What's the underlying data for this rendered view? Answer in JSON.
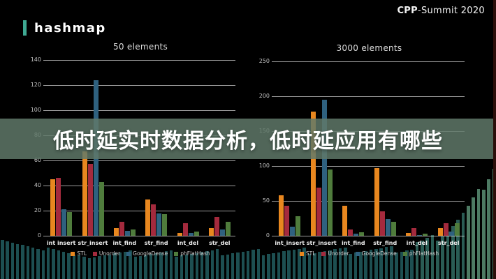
{
  "header": {
    "brand": "hashmap",
    "event": {
      "bold": "CPP",
      "rest": "-Summit 2020"
    }
  },
  "overlay": {
    "text": "低时延实时数据分析，低时延应用有哪些"
  },
  "chart_data": [
    {
      "type": "bar",
      "title": "50 elements",
      "categories": [
        "int insert",
        "str_insert",
        "int_find",
        "str_find",
        "int_del",
        "str_del"
      ],
      "series": [
        {
          "name": "STL",
          "color": "#e8871f",
          "values": [
            45,
            67,
            6,
            29,
            2,
            6
          ]
        },
        {
          "name": "Unorder",
          "color": "#a42a3d",
          "values": [
            46,
            57,
            11,
            25,
            10,
            15
          ]
        },
        {
          "name": "GoogleDense",
          "color": "#2f617f",
          "values": [
            21,
            124,
            4,
            18,
            2,
            5
          ]
        },
        {
          "name": "phFlatHash",
          "color": "#4f7c3c",
          "values": [
            19,
            43,
            5,
            17,
            3.5,
            11
          ]
        }
      ],
      "ylim": [
        0,
        140
      ],
      "ytick_step": 20,
      "grid": true,
      "legend_position": "bottom"
    },
    {
      "type": "bar",
      "title": "3000 elements",
      "categories": [
        "int_insert",
        "str_insert",
        "int_find",
        "str_find",
        "int_del",
        "str_del"
      ],
      "series": [
        {
          "name": "STL",
          "color": "#e8871f",
          "values": [
            58,
            178,
            43,
            97,
            4,
            11
          ]
        },
        {
          "name": "Unorder",
          "color": "#a42a3d",
          "values": [
            43,
            69,
            9,
            35,
            11,
            18
          ]
        },
        {
          "name": "GoogleDense",
          "color": "#2f617f",
          "values": [
            13,
            195,
            3,
            24,
            1.5,
            6
          ]
        },
        {
          "name": "phFlatHash",
          "color": "#4f7c3c",
          "values": [
            28,
            95,
            5,
            20,
            3.5,
            18
          ]
        }
      ],
      "ylim": [
        0,
        250
      ],
      "ytick_step": 50,
      "grid": true,
      "legend_position": "bottom"
    }
  ],
  "colors": {
    "background": "#000000",
    "accent": "#3fa993",
    "band": "rgba(97,122,106,0.84)",
    "grid": "#b8b8b8",
    "decor": "#1d4f51",
    "decor_mid": "#2a5c54",
    "decor_light": "#4d7a63"
  }
}
